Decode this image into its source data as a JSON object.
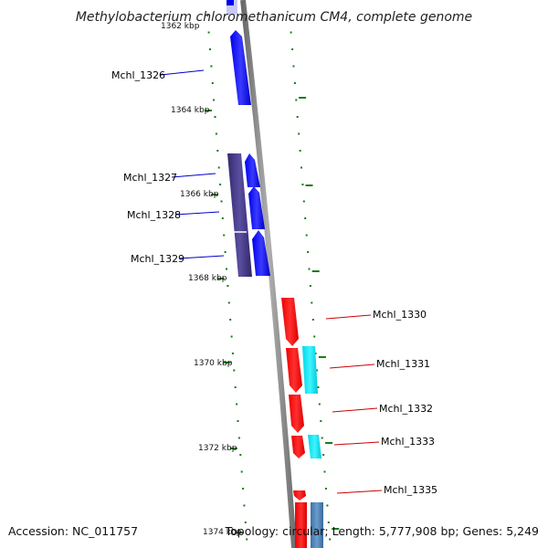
{
  "title": "Methylobacterium chloromethanicum CM4, complete genome",
  "footer": {
    "accession": "Accession: NC_011757",
    "topology": "Topology: circular; Length: 5,777,908 bp; Genes: 5,249"
  },
  "kbp_labels": [
    "1362 kbp",
    "1364 kbp",
    "1366 kbp",
    "1368 kbp",
    "1370 kbp",
    "1372 kbp",
    "1374 kbp"
  ],
  "genes": [
    {
      "name": "Mchl_1326",
      "strand": "reverse"
    },
    {
      "name": "Mchl_1327",
      "strand": "reverse"
    },
    {
      "name": "Mchl_1328",
      "strand": "reverse"
    },
    {
      "name": "Mchl_1329",
      "strand": "reverse"
    },
    {
      "name": "Mchl_1330",
      "strand": "forward"
    },
    {
      "name": "Mchl_1331",
      "strand": "forward"
    },
    {
      "name": "Mchl_1332",
      "strand": "forward"
    },
    {
      "name": "Mchl_1333",
      "strand": "forward"
    },
    {
      "name": "Mchl_1335",
      "strand": "forward"
    }
  ],
  "colors": {
    "reverse_gene": "#0000ee",
    "forward_gene": "#ee0000",
    "reverse_label": "#000099",
    "forward_label": "#cc0000",
    "feature_reverse": "#3d3580",
    "feature_forward": "#00e0ee",
    "feature_forward_alt": "#4a7fb0",
    "tick": "#1a7a1a",
    "backbone": "#888888"
  }
}
